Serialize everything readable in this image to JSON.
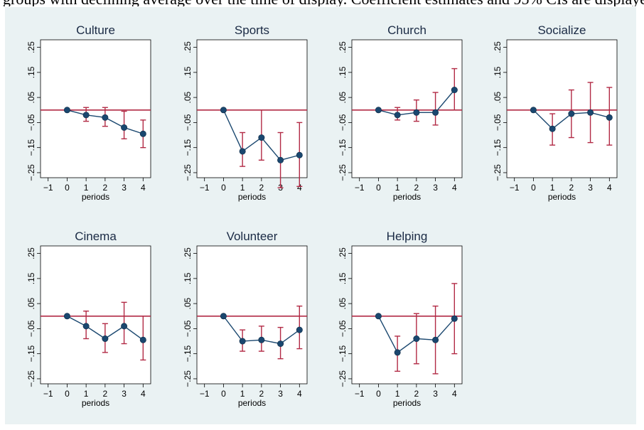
{
  "caption": "groups with declining average over the time of display. Coefficient estimates and 95% CIs are displayed.",
  "style": {
    "background": "#eaf2f3",
    "plot_background": "#ffffff",
    "reference_line_color": "#b22a45",
    "series_color": "#1a476f",
    "ci_color": "#b22a45"
  },
  "chart_data": [
    {
      "type": "scatter",
      "title": "Culture",
      "xlabel": "periods",
      "x_ticks": [
        "-1",
        "0",
        "1",
        "2",
        "3",
        "4"
      ],
      "y_ticks": [
        ".25",
        ".15",
        ".05",
        "-.05",
        "-.15",
        "-.25"
      ],
      "xlim": [
        -1.4,
        4.4
      ],
      "ylim": [
        -0.27,
        0.28
      ],
      "reference_line": 0,
      "grid": false,
      "x": [
        0,
        1,
        2,
        3,
        4
      ],
      "y": [
        0.0,
        -0.02,
        -0.03,
        -0.07,
        -0.095
      ],
      "ci_low": [
        0.0,
        -0.045,
        -0.065,
        -0.115,
        -0.15
      ],
      "ci_high": [
        0.0,
        0.01,
        0.01,
        -0.005,
        -0.04
      ]
    },
    {
      "type": "scatter",
      "title": "Sports",
      "xlabel": "periods",
      "x_ticks": [
        "-1",
        "0",
        "1",
        "2",
        "3",
        "4"
      ],
      "y_ticks": [
        ".25",
        ".15",
        ".05",
        "-.05",
        "-.15",
        "-.25"
      ],
      "xlim": [
        -1.4,
        4.4
      ],
      "ylim": [
        -0.27,
        0.28
      ],
      "reference_line": 0,
      "grid": false,
      "x": [
        0,
        1,
        2,
        3,
        4
      ],
      "y": [
        0.0,
        -0.165,
        -0.11,
        -0.2,
        -0.18
      ],
      "ci_low": [
        0.0,
        -0.225,
        -0.2,
        -0.31,
        -0.305
      ],
      "ci_high": [
        0.0,
        -0.09,
        0.0,
        -0.09,
        -0.05
      ]
    },
    {
      "type": "scatter",
      "title": "Church",
      "xlabel": "periods",
      "x_ticks": [
        "-1",
        "0",
        "1",
        "2",
        "3",
        "4"
      ],
      "y_ticks": [
        ".25",
        ".15",
        ".05",
        "-.05",
        "-.15",
        "-.25"
      ],
      "xlim": [
        -1.4,
        4.4
      ],
      "ylim": [
        -0.27,
        0.28
      ],
      "reference_line": 0,
      "grid": false,
      "x": [
        0,
        1,
        2,
        3,
        4
      ],
      "y": [
        0.0,
        -0.02,
        -0.01,
        -0.01,
        0.08
      ],
      "ci_low": [
        0.0,
        -0.04,
        -0.045,
        -0.06,
        0.0
      ],
      "ci_high": [
        0.0,
        0.01,
        0.04,
        0.07,
        0.165
      ]
    },
    {
      "type": "scatter",
      "title": "Socialize",
      "xlabel": "periods",
      "x_ticks": [
        "-1",
        "0",
        "1",
        "2",
        "3",
        "4"
      ],
      "y_ticks": [
        ".25",
        ".15",
        ".05",
        "-.05",
        "-.15",
        "-.25"
      ],
      "xlim": [
        -1.4,
        4.4
      ],
      "ylim": [
        -0.27,
        0.28
      ],
      "reference_line": 0,
      "grid": false,
      "x": [
        0,
        1,
        2,
        3,
        4
      ],
      "y": [
        0.0,
        -0.075,
        -0.015,
        -0.01,
        -0.03
      ],
      "ci_low": [
        0.0,
        -0.14,
        -0.11,
        -0.13,
        -0.14
      ],
      "ci_high": [
        0.0,
        -0.015,
        0.08,
        0.11,
        0.09
      ]
    },
    {
      "type": "scatter",
      "title": "Cinema",
      "xlabel": "periods",
      "x_ticks": [
        "-1",
        "0",
        "1",
        "2",
        "3",
        "4"
      ],
      "y_ticks": [
        ".25",
        ".15",
        ".05",
        "-.05",
        "-.15",
        "-.25"
      ],
      "xlim": [
        -1.4,
        4.4
      ],
      "ylim": [
        -0.27,
        0.28
      ],
      "reference_line": 0,
      "grid": false,
      "x": [
        0,
        1,
        2,
        3,
        4
      ],
      "y": [
        0.0,
        -0.04,
        -0.09,
        -0.04,
        -0.095
      ],
      "ci_low": [
        0.0,
        -0.09,
        -0.145,
        -0.11,
        -0.175
      ],
      "ci_high": [
        0.0,
        0.02,
        -0.03,
        0.055,
        0.0
      ]
    },
    {
      "type": "scatter",
      "title": "Volunteer",
      "xlabel": "periods",
      "x_ticks": [
        "-1",
        "0",
        "1",
        "2",
        "3",
        "4"
      ],
      "y_ticks": [
        ".25",
        ".15",
        ".05",
        "-.05",
        "-.15",
        "-.25"
      ],
      "xlim": [
        -1.4,
        4.4
      ],
      "ylim": [
        -0.27,
        0.28
      ],
      "reference_line": 0,
      "grid": false,
      "x": [
        0,
        1,
        2,
        3,
        4
      ],
      "y": [
        0.0,
        -0.1,
        -0.095,
        -0.11,
        -0.055
      ],
      "ci_low": [
        0.0,
        -0.14,
        -0.14,
        -0.17,
        -0.13
      ],
      "ci_high": [
        0.0,
        -0.055,
        -0.04,
        -0.045,
        0.04
      ]
    },
    {
      "type": "scatter",
      "title": "Helping",
      "xlabel": "periods",
      "x_ticks": [
        "-1",
        "0",
        "1",
        "2",
        "3",
        "4"
      ],
      "y_ticks": [
        ".25",
        ".15",
        ".05",
        "-.05",
        "-.15",
        "-.25"
      ],
      "xlim": [
        -1.4,
        4.4
      ],
      "ylim": [
        -0.27,
        0.28
      ],
      "reference_line": 0,
      "grid": false,
      "x": [
        0,
        1,
        2,
        3,
        4
      ],
      "y": [
        0.0,
        -0.145,
        -0.09,
        -0.095,
        -0.01
      ],
      "ci_low": [
        0.0,
        -0.22,
        -0.19,
        -0.23,
        -0.15
      ],
      "ci_high": [
        0.0,
        -0.08,
        0.01,
        0.04,
        0.13
      ]
    }
  ]
}
